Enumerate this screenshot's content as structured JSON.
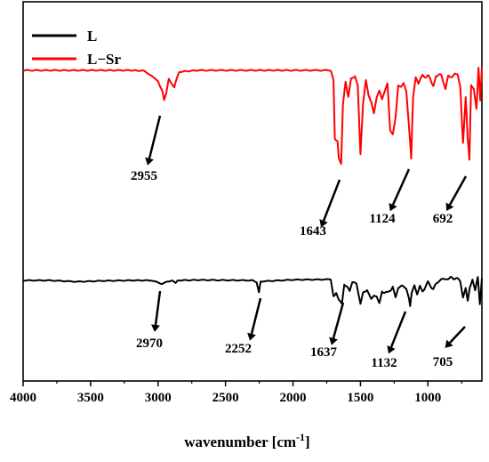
{
  "chart_data": {
    "type": "line",
    "xlabel_main": "wavenumber [cm",
    "xlabel_sup": "-1",
    "xlabel_close": "]",
    "ylabel": "",
    "xlim": [
      4000,
      600
    ],
    "x_inverted": true,
    "yticks_visible": false,
    "grid": false,
    "x_ticks": [
      "4000",
      "3500",
      "3000",
      "2500",
      "2000",
      "1500",
      "1000"
    ],
    "x_tick_values": [
      4000,
      3500,
      3000,
      2500,
      2000,
      1500,
      1000
    ],
    "legend_placement": "top-left",
    "series": [
      {
        "name": "L",
        "color": "#000000",
        "points": [
          [
            4000,
            0.0
          ],
          [
            3800,
            0.0
          ],
          [
            3600,
            -0.06
          ],
          [
            3400,
            -0.02
          ],
          [
            3200,
            0.0
          ],
          [
            3050,
            0.0
          ],
          [
            2970,
            -0.16
          ],
          [
            2930,
            -0.06
          ],
          [
            2900,
            -0.01
          ],
          [
            2870,
            -0.1
          ],
          [
            2850,
            0.0
          ],
          [
            2700,
            0.02
          ],
          [
            2500,
            0.01
          ],
          [
            2300,
            0.0
          ],
          [
            2270,
            -0.08
          ],
          [
            2252,
            -0.55
          ],
          [
            2240,
            -0.05
          ],
          [
            2000,
            0.03
          ],
          [
            1800,
            0.04
          ],
          [
            1720,
            0.05
          ],
          [
            1700,
            -0.75
          ],
          [
            1680,
            -0.6
          ],
          [
            1660,
            -0.9
          ],
          [
            1637,
            -1.1
          ],
          [
            1620,
            -0.2
          ],
          [
            1600,
            -0.3
          ],
          [
            1580,
            -0.55
          ],
          [
            1560,
            -0.1
          ],
          [
            1530,
            -0.2
          ],
          [
            1500,
            -1.05
          ],
          [
            1480,
            -0.55
          ],
          [
            1450,
            -0.4
          ],
          [
            1420,
            -0.9
          ],
          [
            1400,
            -0.7
          ],
          [
            1380,
            -0.7
          ],
          [
            1360,
            -1.0
          ],
          [
            1340,
            -0.5
          ],
          [
            1300,
            -0.6
          ],
          [
            1260,
            -0.3
          ],
          [
            1240,
            -0.75
          ],
          [
            1220,
            -0.3
          ],
          [
            1180,
            -0.3
          ],
          [
            1160,
            -0.45
          ],
          [
            1140,
            -0.9
          ],
          [
            1132,
            -1.25
          ],
          [
            1120,
            -0.6
          ],
          [
            1100,
            -0.2
          ],
          [
            1080,
            -0.6
          ],
          [
            1060,
            -0.2
          ],
          [
            1040,
            -0.5
          ],
          [
            1000,
            -0.1
          ],
          [
            960,
            -0.4
          ],
          [
            920,
            0.0
          ],
          [
            900,
            0.1
          ],
          [
            880,
            0.05
          ],
          [
            850,
            0.12
          ],
          [
            800,
            0.1
          ],
          [
            760,
            0.0
          ],
          [
            740,
            -0.8
          ],
          [
            720,
            -0.4
          ],
          [
            705,
            -0.95
          ],
          [
            690,
            -0.3
          ],
          [
            670,
            0.05
          ],
          [
            650,
            -0.5
          ],
          [
            630,
            0.1
          ],
          [
            615,
            -1.15
          ],
          [
            600,
            0.1
          ]
        ]
      },
      {
        "name": "L−Sr",
        "color": "#ff0000",
        "points": [
          [
            4000,
            0.0
          ],
          [
            3500,
            0.0
          ],
          [
            3200,
            0.0
          ],
          [
            3100,
            -0.02
          ],
          [
            3050,
            -0.18
          ],
          [
            3000,
            -0.4
          ],
          [
            2970,
            -0.7
          ],
          [
            2955,
            -1.05
          ],
          [
            2940,
            -0.8
          ],
          [
            2920,
            -0.3
          ],
          [
            2880,
            -0.6
          ],
          [
            2860,
            -0.25
          ],
          [
            2840,
            -0.05
          ],
          [
            2700,
            0.0
          ],
          [
            2300,
            0.0
          ],
          [
            2000,
            0.0
          ],
          [
            1800,
            0.0
          ],
          [
            1720,
            0.0
          ],
          [
            1700,
            -0.35
          ],
          [
            1690,
            -2.4
          ],
          [
            1670,
            -2.5
          ],
          [
            1660,
            -3.1
          ],
          [
            1643,
            -3.3
          ],
          [
            1630,
            -1.2
          ],
          [
            1610,
            -0.4
          ],
          [
            1590,
            -0.9
          ],
          [
            1570,
            -0.3
          ],
          [
            1540,
            -0.15
          ],
          [
            1520,
            -0.5
          ],
          [
            1500,
            -2.95
          ],
          [
            1480,
            -1.2
          ],
          [
            1460,
            -0.4
          ],
          [
            1440,
            -0.9
          ],
          [
            1420,
            -1.1
          ],
          [
            1400,
            -1.45
          ],
          [
            1380,
            -0.9
          ],
          [
            1360,
            -0.7
          ],
          [
            1340,
            -1.05
          ],
          [
            1320,
            -0.8
          ],
          [
            1300,
            -0.5
          ],
          [
            1280,
            -2.1
          ],
          [
            1260,
            -2.2
          ],
          [
            1240,
            -1.6
          ],
          [
            1220,
            -0.5
          ],
          [
            1200,
            -0.6
          ],
          [
            1180,
            -0.5
          ],
          [
            1160,
            -0.8
          ],
          [
            1140,
            -2.0
          ],
          [
            1124,
            -3.15
          ],
          [
            1110,
            -1.0
          ],
          [
            1090,
            -0.3
          ],
          [
            1070,
            -0.5
          ],
          [
            1040,
            -0.2
          ],
          [
            1000,
            -0.2
          ],
          [
            960,
            -0.5
          ],
          [
            940,
            -0.15
          ],
          [
            900,
            -0.2
          ],
          [
            870,
            -0.6
          ],
          [
            850,
            -0.15
          ],
          [
            820,
            -0.2
          ],
          [
            800,
            -0.05
          ],
          [
            780,
            -0.1
          ],
          [
            760,
            -0.6
          ],
          [
            740,
            -2.6
          ],
          [
            720,
            -1.0
          ],
          [
            706,
            -2.4
          ],
          [
            692,
            -3.2
          ],
          [
            680,
            -0.5
          ],
          [
            660,
            -0.6
          ],
          [
            640,
            -1.3
          ],
          [
            625,
            0.15
          ],
          [
            612,
            -1.0
          ],
          [
            600,
            0.1
          ]
        ]
      }
    ],
    "annotations": [
      {
        "series": "L−Sr",
        "label": "2955",
        "x": 2955
      },
      {
        "series": "L−Sr",
        "label": "1643",
        "x": 1643
      },
      {
        "series": "L−Sr",
        "label": "1124",
        "x": 1124
      },
      {
        "series": "L−Sr",
        "label": "692",
        "x": 692
      },
      {
        "series": "L",
        "label": "2970",
        "x": 2970
      },
      {
        "series": "L",
        "label": "2252",
        "x": 2252
      },
      {
        "series": "L",
        "label": "1637",
        "x": 1637
      },
      {
        "series": "L",
        "label": "1132",
        "x": 1132
      },
      {
        "series": "L",
        "label": "705",
        "x": 705
      }
    ]
  }
}
